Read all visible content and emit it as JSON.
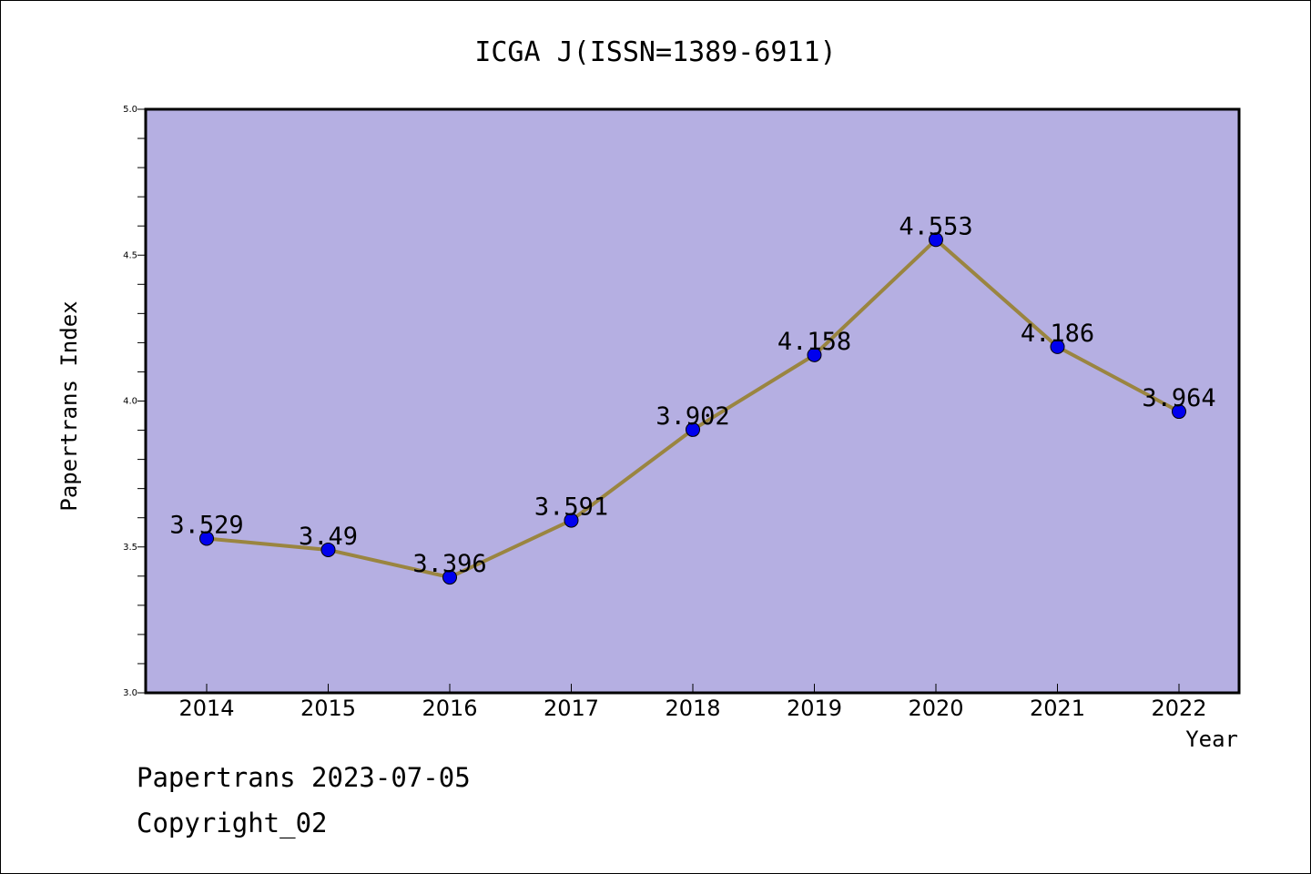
{
  "chart_data": {
    "type": "line",
    "title": "ICGA J(ISSN=1389-6911)",
    "xlabel": "Year",
    "ylabel": "Papertrans Index",
    "categories": [
      "2014",
      "2015",
      "2016",
      "2017",
      "2018",
      "2019",
      "2020",
      "2021",
      "2022"
    ],
    "values": [
      3.529,
      3.49,
      3.396,
      3.591,
      3.902,
      4.158,
      4.553,
      4.186,
      3.964
    ],
    "data_labels": [
      "3.529",
      "3.49",
      "3.396",
      "3.591",
      "3.902",
      "4.158",
      "4.553",
      "4.186",
      "3.964"
    ],
    "ylim": [
      3.0,
      5.0
    ],
    "yticks": [
      "3.0",
      "3.5",
      "4.0",
      "4.5",
      "5.0"
    ],
    "grid": false,
    "legend": "none",
    "colors": {
      "plot_background": "#b5afe2",
      "line": "#9a8540",
      "marker": "#0000ee"
    }
  },
  "footer": {
    "date_line": "Papertrans 2023-07-05",
    "copyright": "Copyright_02"
  }
}
